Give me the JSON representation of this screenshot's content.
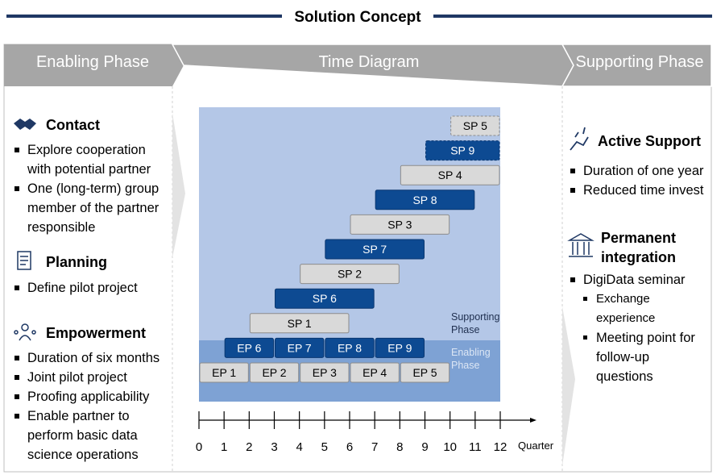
{
  "title": "Solution Concept",
  "header": {
    "left": "Enabling Phase",
    "center": "Time Diagram",
    "right": "Supporting Phase"
  },
  "left_sections": [
    {
      "heading": "Contact",
      "bullets": [
        "Explore cooperation with potential partner",
        "One (long-term) group member of the partner responsible"
      ]
    },
    {
      "heading": "Planning",
      "bullets": [
        "Define pilot project"
      ]
    },
    {
      "heading": "Empowerment",
      "bullets": [
        "Duration of six months",
        "Joint pilot project",
        "Proofing applicability",
        "Enable partner to perform basic data science operations"
      ]
    }
  ],
  "right_sections": [
    {
      "heading": "Active Support",
      "bullets": [
        "Duration of one year",
        "Reduced time invest"
      ]
    },
    {
      "heading": "Permanent integration",
      "bullets": [
        "DigiData seminar"
      ],
      "sub_bullets": [
        "Exchange experience",
        "Meeting point for follow-up questions"
      ]
    }
  ],
  "timeline": {
    "zones": [
      "Supporting Phase",
      "Enabling Phase"
    ],
    "axis_label": "Quarter",
    "xlim": [
      0,
      12
    ],
    "xticks": [
      0,
      1,
      2,
      3,
      4,
      5,
      6,
      7,
      8,
      9,
      10,
      11,
      12
    ],
    "bars": [
      {
        "label": "SP 5",
        "start": 10,
        "end": 12,
        "style": "light",
        "dashed": true
      },
      {
        "label": "SP 9",
        "start": 9,
        "end": 12,
        "style": "dark",
        "dashed": true
      },
      {
        "label": "SP 4",
        "start": 8,
        "end": 12,
        "style": "light"
      },
      {
        "label": "SP 8",
        "start": 7,
        "end": 11,
        "style": "dark"
      },
      {
        "label": "SP 3",
        "start": 6,
        "end": 10,
        "style": "light"
      },
      {
        "label": "SP 7",
        "start": 5,
        "end": 9,
        "style": "dark"
      },
      {
        "label": "SP 2",
        "start": 4,
        "end": 8,
        "style": "light"
      },
      {
        "label": "SP 6",
        "start": 3,
        "end": 7,
        "style": "dark"
      },
      {
        "label": "SP 1",
        "start": 2,
        "end": 6,
        "style": "light"
      },
      {
        "label": "EP 6",
        "start": 1,
        "end": 3,
        "style": "dark",
        "row": 9
      },
      {
        "label": "EP 7",
        "start": 3,
        "end": 5,
        "style": "dark",
        "row": 9
      },
      {
        "label": "EP 8",
        "start": 5,
        "end": 7,
        "style": "dark",
        "row": 9
      },
      {
        "label": "EP 9",
        "start": 7,
        "end": 9,
        "style": "dark",
        "row": 9
      },
      {
        "label": "EP 1",
        "start": 0,
        "end": 2,
        "style": "light",
        "row": 10
      },
      {
        "label": "EP 2",
        "start": 2,
        "end": 4,
        "style": "light",
        "row": 10
      },
      {
        "label": "EP 3",
        "start": 4,
        "end": 6,
        "style": "light",
        "row": 10
      },
      {
        "label": "EP 4",
        "start": 6,
        "end": 8,
        "style": "light",
        "row": 10
      },
      {
        "label": "EP 5",
        "start": 8,
        "end": 10,
        "style": "light",
        "row": 10
      }
    ]
  }
}
